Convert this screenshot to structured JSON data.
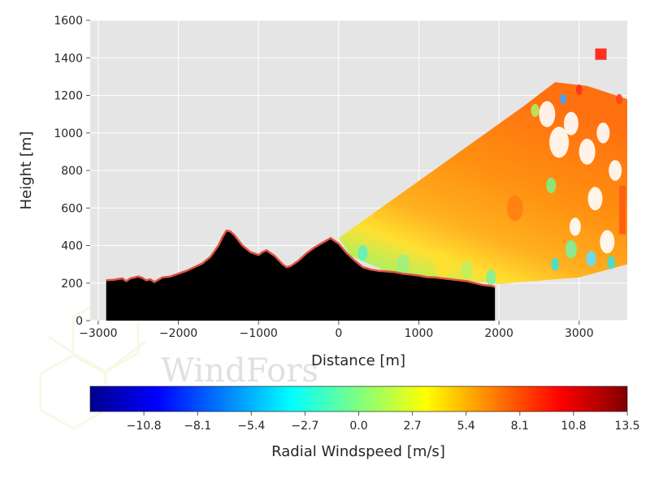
{
  "watermark": "WindFors",
  "chart_data": {
    "type": "heatmap",
    "title": "",
    "xlabel": "Distance [m]",
    "ylabel": "Height [m]",
    "xlim": [
      -3100,
      3600
    ],
    "ylim": [
      0,
      1600
    ],
    "xticks": [
      -3000,
      -2000,
      -1000,
      0,
      1000,
      2000,
      3000
    ],
    "xtick_labels": [
      "−3000",
      "−2000",
      "−1000",
      "0",
      "1000",
      "2000",
      "3000"
    ],
    "yticks": [
      0,
      200,
      400,
      600,
      800,
      1000,
      1200,
      1400,
      1600
    ],
    "ytick_labels": [
      "0",
      "200",
      "400",
      "600",
      "800",
      "1000",
      "1200",
      "1400",
      "1600"
    ],
    "grid": true,
    "colormap": "jet",
    "colorbar": {
      "label": "Radial Windspeed [m/s]",
      "range": [
        -13.5,
        13.5
      ],
      "ticks": [
        -10.8,
        -8.1,
        -5.4,
        -2.7,
        0.0,
        2.7,
        5.4,
        8.1,
        10.8,
        13.5
      ],
      "tick_labels": [
        "−10.8",
        "−8.1",
        "−5.4",
        "−2.7",
        "0.0",
        "2.7",
        "5.4",
        "8.1",
        "10.8",
        "13.5"
      ]
    },
    "terrain": {
      "x": [
        -2900,
        -2800,
        -2700,
        -2650,
        -2600,
        -2500,
        -2450,
        -2400,
        -2350,
        -2300,
        -2200,
        -2100,
        -2000,
        -1900,
        -1800,
        -1700,
        -1600,
        -1500,
        -1450,
        -1400,
        -1350,
        -1300,
        -1200,
        -1100,
        -1000,
        -950,
        -900,
        -850,
        -800,
        -700,
        -650,
        -600,
        -500,
        -400,
        -300,
        -200,
        -100,
        0,
        100,
        200,
        300,
        400,
        500,
        600,
        700,
        800,
        900,
        1000,
        1100,
        1200,
        1300,
        1400,
        1500,
        1600,
        1700,
        1800,
        1900,
        1950
      ],
      "height": [
        215,
        218,
        225,
        210,
        225,
        235,
        228,
        215,
        220,
        205,
        230,
        235,
        250,
        265,
        285,
        305,
        340,
        400,
        445,
        480,
        475,
        455,
        400,
        365,
        350,
        365,
        375,
        360,
        345,
        300,
        285,
        290,
        320,
        360,
        390,
        415,
        440,
        410,
        360,
        320,
        285,
        272,
        265,
        262,
        258,
        250,
        245,
        240,
        232,
        230,
        225,
        220,
        215,
        210,
        200,
        190,
        185,
        180
      ]
    },
    "windspeed_region": {
      "origin": [
        0,
        440
      ],
      "outer_edge_angle_deg": 45,
      "value_range_shown": [
        -2.7,
        10.8
      ],
      "dominant_value": 9.5
    }
  }
}
